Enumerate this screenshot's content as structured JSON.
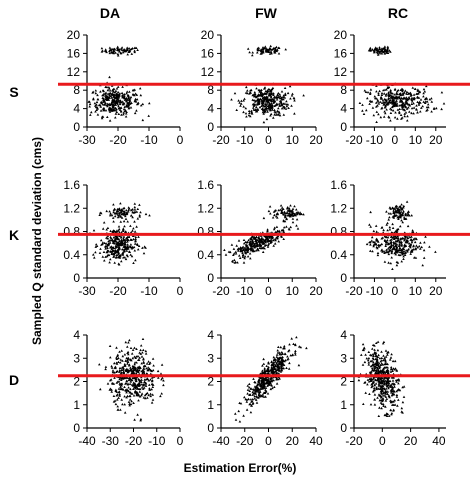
{
  "figure": {
    "column_titles": [
      "DA",
      "FW",
      "RC"
    ],
    "row_labels": [
      "S",
      "K",
      "D"
    ],
    "ylabel": "Sampled Q standard deviation (cms)",
    "xlabel": "Estimation Error(%)"
  },
  "colors": {
    "points": "#000000",
    "threshold_line": "#e8191c"
  },
  "chart_data": [
    {
      "type": "scatter",
      "panel": "S-DA",
      "row": "S",
      "column": "DA",
      "xlim": [
        -30,
        0
      ],
      "xticks": [
        -30,
        -20,
        -10,
        0
      ],
      "ylim": [
        0,
        20
      ],
      "yticks": [
        0,
        4,
        8,
        12,
        16,
        20
      ],
      "threshold": 9.3,
      "clusters": [
        {
          "x_center": -19,
          "x_spread": 3,
          "y_center": 16.6,
          "y_spread": 0.4,
          "count": 70
        },
        {
          "x_center": -21,
          "x_spread": 4,
          "y_center": 5.6,
          "y_spread": 1.6,
          "count": 330
        }
      ]
    },
    {
      "type": "scatter",
      "panel": "S-FW",
      "row": "S",
      "column": "FW",
      "xlim": [
        -20,
        20
      ],
      "xticks": [
        -20,
        -10,
        0,
        10,
        20
      ],
      "ylim": [
        0,
        20
      ],
      "yticks": [
        0,
        4,
        8,
        12,
        16,
        20
      ],
      "threshold": 9.3,
      "clusters": [
        {
          "x_center": 0,
          "x_spread": 3,
          "y_center": 16.6,
          "y_spread": 0.4,
          "count": 70
        },
        {
          "x_center": -1,
          "x_spread": 5,
          "y_center": 5.6,
          "y_spread": 1.6,
          "count": 330
        }
      ]
    },
    {
      "type": "scatter",
      "panel": "S-RC",
      "row": "S",
      "column": "RC",
      "xlim": [
        -20,
        25
      ],
      "xticks": [
        -20,
        -10,
        0,
        10,
        20
      ],
      "ylim": [
        0,
        20
      ],
      "yticks": [
        0,
        4,
        8,
        12,
        16,
        20
      ],
      "threshold": 9.3,
      "clusters": [
        {
          "x_center": -7,
          "x_spread": 2.5,
          "y_center": 16.6,
          "y_spread": 0.4,
          "count": 70
        },
        {
          "x_center": 2,
          "x_spread": 8,
          "y_center": 5.6,
          "y_spread": 1.6,
          "count": 330
        }
      ]
    },
    {
      "type": "scatter",
      "panel": "K-DA",
      "row": "K",
      "column": "DA",
      "xlim": [
        -30,
        0
      ],
      "xticks": [
        -30,
        -20,
        -10,
        0
      ],
      "ylim": [
        0,
        1.6
      ],
      "yticks": [
        0,
        0.4,
        0.8,
        1.2,
        1.6
      ],
      "threshold": 0.75,
      "clusters": [
        {
          "x_center": -18,
          "x_spread": 3,
          "y_center": 1.12,
          "y_spread": 0.06,
          "count": 90
        },
        {
          "x_center": -20,
          "x_spread": 3,
          "y_center": 0.58,
          "y_spread": 0.15,
          "count": 310
        }
      ]
    },
    {
      "type": "scatter",
      "panel": "K-FW",
      "row": "K",
      "column": "FW",
      "xlim": [
        -20,
        20
      ],
      "xticks": [
        -20,
        -10,
        0,
        10,
        20
      ],
      "ylim": [
        0,
        1.6
      ],
      "yticks": [
        0,
        0.4,
        0.8,
        1.2,
        1.6
      ],
      "threshold": 0.75,
      "clusters": [
        {
          "x_center": 8,
          "x_spread": 3,
          "y_center": 1.12,
          "y_spread": 0.06,
          "count": 90
        },
        {
          "x_center": -4,
          "x_spread": 6,
          "y_center": 0.62,
          "y_spread": 0.08,
          "count": 310,
          "trend": 0.018
        }
      ]
    },
    {
      "type": "scatter",
      "panel": "K-RC",
      "row": "K",
      "column": "RC",
      "xlim": [
        -20,
        25
      ],
      "xticks": [
        -20,
        -10,
        0,
        10,
        20
      ],
      "ylim": [
        0,
        1.6
      ],
      "yticks": [
        0,
        0.4,
        0.8,
        1.2,
        1.6
      ],
      "threshold": 0.75,
      "clusters": [
        {
          "x_center": 2,
          "x_spread": 2.5,
          "y_center": 1.12,
          "y_spread": 0.07,
          "count": 90
        },
        {
          "x_center": 0,
          "x_spread": 6,
          "y_center": 0.6,
          "y_spread": 0.15,
          "count": 310
        }
      ]
    },
    {
      "type": "scatter",
      "panel": "D-DA",
      "row": "D",
      "column": "DA",
      "xlim": [
        -40,
        0
      ],
      "xticks": [
        -40,
        -30,
        -20,
        -10,
        0
      ],
      "ylim": [
        0,
        4
      ],
      "yticks": [
        0,
        1,
        2,
        3,
        4
      ],
      "threshold": 2.25,
      "clusters": [
        {
          "x_center": -20,
          "x_spread": 5,
          "y_center": 2.2,
          "y_spread": 0.6,
          "count": 450
        }
      ]
    },
    {
      "type": "scatter",
      "panel": "D-FW",
      "row": "D",
      "column": "FW",
      "xlim": [
        -40,
        40
      ],
      "xticks": [
        -40,
        -20,
        0,
        20,
        40
      ],
      "ylim": [
        0,
        4
      ],
      "yticks": [
        0,
        1,
        2,
        3,
        4
      ],
      "threshold": 2.25,
      "clusters": [
        {
          "x_center": 0,
          "x_spread": 10,
          "y_center": 2.2,
          "y_spread": 0.3,
          "count": 450,
          "trend": 0.055
        }
      ]
    },
    {
      "type": "scatter",
      "panel": "D-RC",
      "row": "D",
      "column": "RC",
      "xlim": [
        -20,
        45
      ],
      "xticks": [
        -20,
        0,
        20,
        40
      ],
      "ylim": [
        0,
        4
      ],
      "yticks": [
        0,
        1,
        2,
        3,
        4
      ],
      "threshold": 2.25,
      "clusters": [
        {
          "x_center": 0,
          "x_spread": 6,
          "y_center": 2.1,
          "y_spread": 0.6,
          "count": 450,
          "trend": -0.04
        }
      ]
    }
  ]
}
